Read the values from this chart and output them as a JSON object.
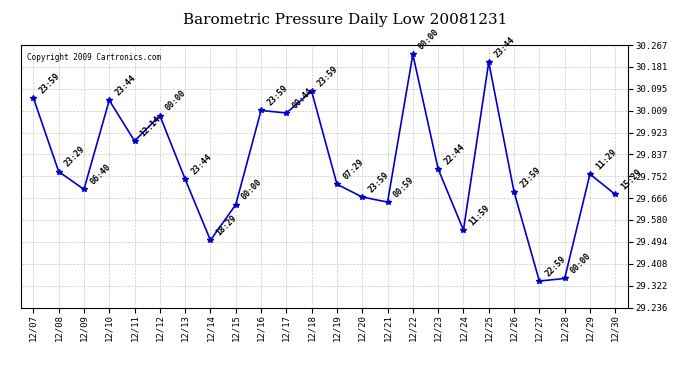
{
  "title": "Barometric Pressure Daily Low 20081231",
  "copyright": "Copyright 2009 Cartronics.com",
  "x_labels": [
    "12/07",
    "12/08",
    "12/09",
    "12/10",
    "12/11",
    "12/12",
    "12/13",
    "12/14",
    "12/15",
    "12/16",
    "12/17",
    "12/18",
    "12/19",
    "12/20",
    "12/21",
    "12/22",
    "12/23",
    "12/24",
    "12/25",
    "12/26",
    "12/27",
    "12/28",
    "12/29",
    "12/30"
  ],
  "y_values": [
    30.06,
    29.77,
    29.7,
    30.05,
    29.89,
    29.99,
    29.74,
    29.5,
    29.64,
    30.01,
    30.0,
    30.085,
    29.72,
    29.67,
    29.65,
    30.23,
    29.78,
    29.54,
    30.2,
    29.69,
    29.34,
    29.35,
    29.76,
    29.68
  ],
  "point_labels": [
    "23:59",
    "23:29",
    "06:40",
    "23:44",
    "12:14",
    "00:00",
    "23:44",
    "18:29",
    "00:00",
    "23:59",
    "00:44",
    "23:59",
    "07:29",
    "23:59",
    "00:59",
    "00:00",
    "22:44",
    "11:59",
    "23:44",
    "23:59",
    "22:59",
    "00:00",
    "11:29",
    "15:29"
  ],
  "ylim": [
    29.236,
    30.267
  ],
  "y_ticks": [
    29.236,
    29.322,
    29.408,
    29.494,
    29.58,
    29.666,
    29.752,
    29.837,
    29.923,
    30.009,
    30.095,
    30.181,
    30.267
  ],
  "line_color": "#0000cc",
  "marker_color": "#0000cc",
  "background_color": "#ffffff",
  "grid_color": "#bbbbbb",
  "title_fontsize": 11,
  "tick_fontsize": 6.5,
  "point_label_fontsize": 6
}
